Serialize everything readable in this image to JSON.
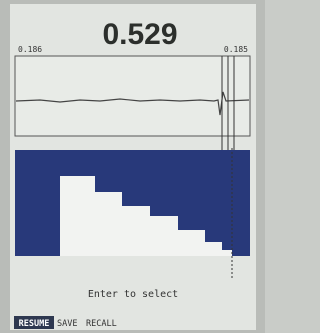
{
  "reading": "0.529",
  "waveform": {
    "left_label": "0.186",
    "right_label": "0.185"
  },
  "prompt": "Enter to select",
  "softkeys": [
    "RESUME",
    "SAVE",
    "RECALL"
  ]
}
